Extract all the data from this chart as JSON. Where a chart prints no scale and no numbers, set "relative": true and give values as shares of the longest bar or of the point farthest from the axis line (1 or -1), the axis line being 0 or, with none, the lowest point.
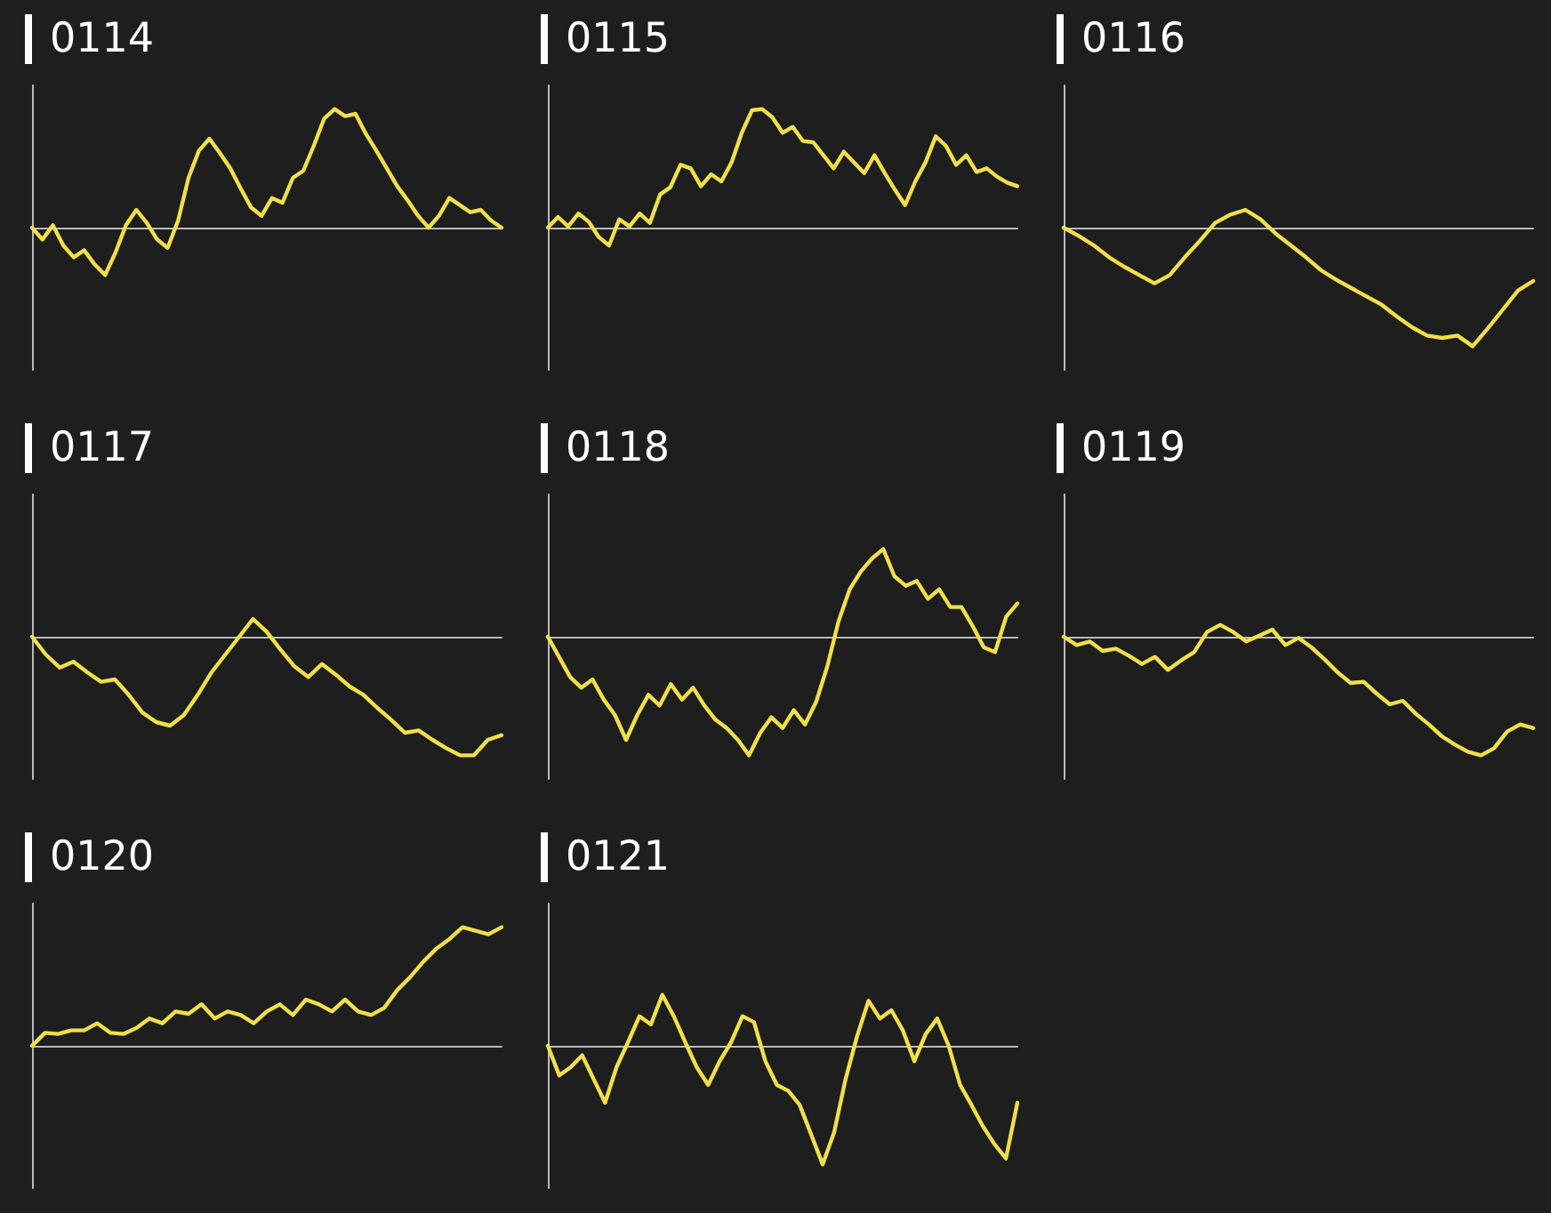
{
  "chart_data": [
    {
      "type": "line",
      "title": "0114",
      "relative": true,
      "color": "#f0df4a",
      "categories": [
        null,
        null,
        null,
        null,
        null,
        null,
        null,
        null,
        null,
        null,
        null,
        null,
        null,
        null,
        null,
        null,
        null,
        null,
        null,
        null,
        null,
        null,
        null,
        null,
        null,
        null,
        null,
        null,
        null,
        null,
        null,
        null,
        null,
        null,
        null,
        null,
        null,
        null,
        null,
        null,
        null,
        null,
        null,
        null,
        null,
        null
      ],
      "values": [
        0,
        -0.1,
        0.02,
        -0.15,
        -0.25,
        -0.19,
        -0.31,
        -0.4,
        -0.21,
        0.02,
        0.15,
        0.04,
        -0.1,
        -0.17,
        0.06,
        0.42,
        0.65,
        0.75,
        0.63,
        0.5,
        0.33,
        0.17,
        0.1,
        0.25,
        0.21,
        0.42,
        0.48,
        0.69,
        0.92,
        1,
        0.94,
        0.96,
        0.79,
        0.65,
        0.5,
        0.35,
        0.23,
        0.1,
        0,
        0.1,
        0.25,
        0.19,
        0.13,
        0.15,
        0.06,
        0
      ]
    },
    {
      "type": "line",
      "title": "0115",
      "relative": true,
      "color": "#f0df4a",
      "categories": [
        null,
        null,
        null,
        null,
        null,
        null,
        null,
        null,
        null,
        null,
        null,
        null,
        null,
        null,
        null,
        null,
        null,
        null,
        null,
        null,
        null,
        null,
        null,
        null,
        null,
        null,
        null,
        null,
        null,
        null,
        null,
        null,
        null,
        null,
        null,
        null,
        null,
        null,
        null,
        null,
        null,
        null,
        null,
        null,
        null,
        null,
        null
      ],
      "values": [
        0,
        0.09,
        0.01,
        0.12,
        0.05,
        -0.08,
        -0.15,
        0.07,
        0.01,
        0.12,
        0.04,
        0.28,
        0.34,
        0.53,
        0.5,
        0.35,
        0.45,
        0.39,
        0.55,
        0.8,
        0.99,
        1,
        0.93,
        0.8,
        0.85,
        0.73,
        0.72,
        0.61,
        0.5,
        0.64,
        0.55,
        0.46,
        0.61,
        0.46,
        0.32,
        0.19,
        0.39,
        0.55,
        0.77,
        0.69,
        0.53,
        0.61,
        0.47,
        0.5,
        0.43,
        0.38,
        0.35
      ]
    },
    {
      "type": "line",
      "title": "0116",
      "relative": true,
      "color": "#f0df4a",
      "categories": [
        null,
        null,
        null,
        null,
        null,
        null,
        null,
        null,
        null,
        null,
        null,
        null,
        null,
        null,
        null,
        null,
        null,
        null,
        null,
        null,
        null,
        null,
        null,
        null,
        null,
        null,
        null,
        null,
        null,
        null,
        null,
        null
      ],
      "values": [
        0,
        -0.07,
        -0.15,
        -0.25,
        -0.33,
        -0.4,
        -0.47,
        -0.4,
        -0.25,
        -0.11,
        0.04,
        0.11,
        0.15,
        0.07,
        -0.05,
        -0.15,
        -0.25,
        -0.36,
        -0.44,
        -0.51,
        -0.58,
        -0.65,
        -0.75,
        -0.84,
        -0.91,
        -0.93,
        -0.91,
        -1,
        -0.85,
        -0.69,
        -0.53,
        -0.45
      ]
    },
    {
      "type": "line",
      "title": "0117",
      "relative": true,
      "color": "#f0df4a",
      "categories": [
        null,
        null,
        null,
        null,
        null,
        null,
        null,
        null,
        null,
        null,
        null,
        null,
        null,
        null,
        null,
        null,
        null,
        null,
        null,
        null,
        null,
        null,
        null,
        null,
        null,
        null,
        null,
        null,
        null,
        null,
        null,
        null,
        null,
        null,
        null
      ],
      "values": [
        0,
        -0.15,
        -0.26,
        -0.21,
        -0.3,
        -0.38,
        -0.36,
        -0.49,
        -0.64,
        -0.72,
        -0.75,
        -0.66,
        -0.49,
        -0.3,
        -0.15,
        0,
        0.15,
        0.04,
        -0.11,
        -0.25,
        -0.34,
        -0.23,
        -0.32,
        -0.42,
        -0.49,
        -0.6,
        -0.7,
        -0.81,
        -0.79,
        -0.87,
        -0.94,
        -1,
        -1,
        -0.87,
        -0.83
      ]
    },
    {
      "type": "line",
      "title": "0118",
      "relative": true,
      "color": "#f0df4a",
      "categories": [
        null,
        null,
        null,
        null,
        null,
        null,
        null,
        null,
        null,
        null,
        null,
        null,
        null,
        null,
        null,
        null,
        null,
        null,
        null,
        null,
        null,
        null,
        null,
        null,
        null,
        null,
        null,
        null,
        null,
        null,
        null,
        null,
        null,
        null,
        null,
        null,
        null,
        null,
        null,
        null,
        null,
        null,
        null
      ],
      "values": [
        0,
        -0.17,
        -0.34,
        -0.43,
        -0.36,
        -0.53,
        -0.66,
        -0.87,
        -0.66,
        -0.49,
        -0.58,
        -0.4,
        -0.53,
        -0.43,
        -0.58,
        -0.7,
        -0.77,
        -0.87,
        -1,
        -0.81,
        -0.68,
        -0.77,
        -0.62,
        -0.74,
        -0.55,
        -0.25,
        0.13,
        0.4,
        0.55,
        0.66,
        0.74,
        0.51,
        0.43,
        0.47,
        0.32,
        0.4,
        0.25,
        0.25,
        0.09,
        -0.09,
        -0.13,
        0.17,
        0.28
      ]
    },
    {
      "type": "line",
      "title": "0119",
      "relative": true,
      "color": "#f0df4a",
      "categories": [
        null,
        null,
        null,
        null,
        null,
        null,
        null,
        null,
        null,
        null,
        null,
        null,
        null,
        null,
        null,
        null,
        null,
        null,
        null,
        null,
        null,
        null,
        null,
        null,
        null,
        null,
        null,
        null,
        null,
        null,
        null,
        null,
        null,
        null,
        null,
        null,
        null
      ],
      "values": [
        0,
        -0.07,
        -0.04,
        -0.12,
        -0.1,
        -0.16,
        -0.23,
        -0.17,
        -0.28,
        -0.2,
        -0.13,
        0.04,
        0.1,
        0.04,
        -0.04,
        0.01,
        0.06,
        -0.07,
        -0.01,
        -0.09,
        -0.19,
        -0.3,
        -0.39,
        -0.38,
        -0.48,
        -0.57,
        -0.54,
        -0.65,
        -0.74,
        -0.84,
        -0.91,
        -0.97,
        -1,
        -0.94,
        -0.8,
        -0.74,
        -0.77
      ]
    },
    {
      "type": "line",
      "title": "0120",
      "relative": true,
      "color": "#f0df4a",
      "categories": [
        null,
        null,
        null,
        null,
        null,
        null,
        null,
        null,
        null,
        null,
        null,
        null,
        null,
        null,
        null,
        null,
        null,
        null,
        null,
        null,
        null,
        null,
        null,
        null,
        null,
        null,
        null,
        null,
        null,
        null,
        null,
        null,
        null,
        null,
        null,
        null,
        null
      ],
      "values": [
        0,
        0.11,
        0.1,
        0.13,
        0.13,
        0.19,
        0.11,
        0.1,
        0.15,
        0.23,
        0.19,
        0.29,
        0.27,
        0.35,
        0.23,
        0.29,
        0.26,
        0.19,
        0.29,
        0.35,
        0.26,
        0.39,
        0.35,
        0.29,
        0.39,
        0.29,
        0.26,
        0.32,
        0.47,
        0.58,
        0.71,
        0.82,
        0.9,
        1,
        0.97,
        0.94,
        1
      ]
    },
    {
      "type": "line",
      "title": "0121",
      "relative": true,
      "color": "#f0df4a",
      "categories": [
        null,
        null,
        null,
        null,
        null,
        null,
        null,
        null,
        null,
        null,
        null,
        null,
        null,
        null,
        null,
        null,
        null,
        null,
        null,
        null,
        null,
        null,
        null,
        null,
        null,
        null,
        null,
        null,
        null,
        null,
        null,
        null,
        null,
        null,
        null,
        null,
        null,
        null,
        null,
        null,
        null,
        null
      ],
      "values": [
        0,
        -0.25,
        -0.18,
        -0.08,
        -0.28,
        -0.48,
        -0.18,
        0.03,
        0.25,
        0.18,
        0.43,
        0.25,
        0.03,
        -0.18,
        -0.33,
        -0.13,
        0.03,
        0.25,
        0.2,
        -0.13,
        -0.33,
        -0.38,
        -0.5,
        -0.75,
        -1,
        -0.73,
        -0.28,
        0.08,
        0.38,
        0.23,
        0.3,
        0.13,
        -0.13,
        0.1,
        0.23,
        0,
        -0.33,
        -0.5,
        -0.68,
        -0.83,
        -0.95,
        -0.48
      ]
    }
  ]
}
